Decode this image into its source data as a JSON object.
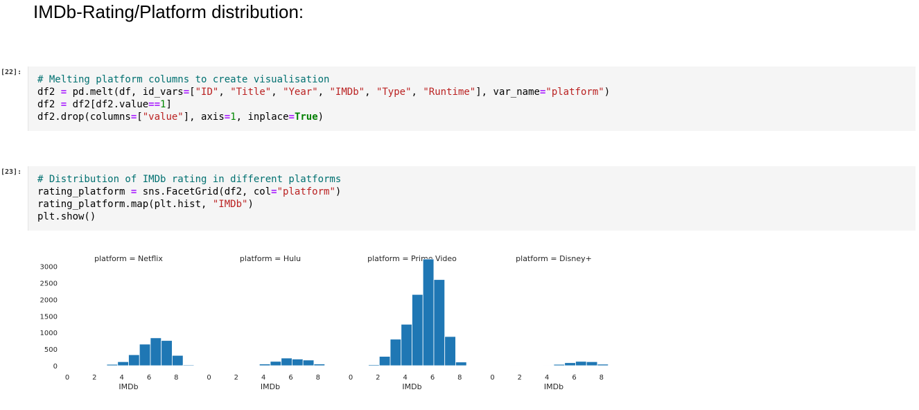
{
  "heading": "IMDb-Rating/Platform distribution:",
  "cells": [
    {
      "prompt": "[22]:",
      "lines": [
        [
          {
            "t": "cm",
            "v": "# Melting platform columns to create visualisation"
          }
        ],
        [
          {
            "t": "",
            "v": "df2 "
          },
          {
            "t": "op",
            "v": "="
          },
          {
            "t": "",
            "v": " pd.melt(df, id_vars"
          },
          {
            "t": "op",
            "v": "="
          },
          {
            "t": "",
            "v": "["
          },
          {
            "t": "st",
            "v": "\"ID\""
          },
          {
            "t": "",
            "v": ", "
          },
          {
            "t": "st",
            "v": "\"Title\""
          },
          {
            "t": "",
            "v": ", "
          },
          {
            "t": "st",
            "v": "\"Year\""
          },
          {
            "t": "",
            "v": ", "
          },
          {
            "t": "st",
            "v": "\"IMDb\""
          },
          {
            "t": "",
            "v": ", "
          },
          {
            "t": "st",
            "v": "\"Type\""
          },
          {
            "t": "",
            "v": ", "
          },
          {
            "t": "st",
            "v": "\"Runtime\""
          },
          {
            "t": "",
            "v": "], var_name"
          },
          {
            "t": "op",
            "v": "="
          },
          {
            "t": "st",
            "v": "\"platform\""
          },
          {
            "t": "",
            "v": ")"
          }
        ],
        [
          {
            "t": "",
            "v": "df2 "
          },
          {
            "t": "op",
            "v": "="
          },
          {
            "t": "",
            "v": " df2[df2.value"
          },
          {
            "t": "op",
            "v": "=="
          },
          {
            "t": "nu",
            "v": "1"
          },
          {
            "t": "",
            "v": "]"
          }
        ],
        [
          {
            "t": "",
            "v": "df2.drop(columns"
          },
          {
            "t": "op",
            "v": "="
          },
          {
            "t": "",
            "v": "["
          },
          {
            "t": "st",
            "v": "\"value\""
          },
          {
            "t": "",
            "v": "], axis"
          },
          {
            "t": "op",
            "v": "="
          },
          {
            "t": "nu",
            "v": "1"
          },
          {
            "t": "",
            "v": ", inplace"
          },
          {
            "t": "op",
            "v": "="
          },
          {
            "t": "kw",
            "v": "True"
          },
          {
            "t": "",
            "v": ")"
          }
        ]
      ]
    },
    {
      "prompt": "[23]:",
      "lines": [
        [
          {
            "t": "cm",
            "v": "# Distribution of IMDb rating in different platforms"
          }
        ],
        [
          {
            "t": "",
            "v": "rating_platform "
          },
          {
            "t": "op",
            "v": "="
          },
          {
            "t": "",
            "v": " sns.FacetGrid(df2, col"
          },
          {
            "t": "op",
            "v": "="
          },
          {
            "t": "st",
            "v": "\"platform\""
          },
          {
            "t": "",
            "v": ")"
          }
        ],
        [
          {
            "t": "",
            "v": "rating_platform.map(plt.hist, "
          },
          {
            "t": "st",
            "v": "\"IMDb\""
          },
          {
            "t": "",
            "v": ")"
          }
        ],
        [
          {
            "t": "",
            "v": "plt.show()"
          }
        ]
      ]
    }
  ],
  "chart_data": {
    "type": "bar",
    "layout": "facet-grid",
    "bar_color": "#1f77b4",
    "xlabel": "IMDb",
    "xticks": [
      0,
      2,
      4,
      6,
      8
    ],
    "xlim": [
      0,
      9
    ],
    "yticks": [
      0,
      500,
      1000,
      1500,
      2000,
      2500,
      3000
    ],
    "ylim": [
      0,
      3200
    ],
    "bin_edges": [
      1.3,
      2.1,
      2.9,
      3.7,
      4.5,
      5.3,
      6.1,
      6.9,
      7.7,
      8.5,
      9.3
    ],
    "facets": [
      {
        "title": "platform = Netflix",
        "values": [
          5,
          15,
          40,
          120,
          330,
          650,
          840,
          760,
          310,
          25
        ]
      },
      {
        "title": "platform = Hulu",
        "values": [
          2,
          5,
          15,
          50,
          130,
          230,
          200,
          170,
          50,
          5
        ]
      },
      {
        "title": "platform = Prime Video",
        "values": [
          30,
          280,
          800,
          1250,
          2150,
          3220,
          2600,
          880,
          110,
          5
        ]
      },
      {
        "title": "platform = Disney+",
        "values": [
          1,
          2,
          4,
          12,
          40,
          90,
          130,
          120,
          45,
          5
        ]
      }
    ]
  }
}
